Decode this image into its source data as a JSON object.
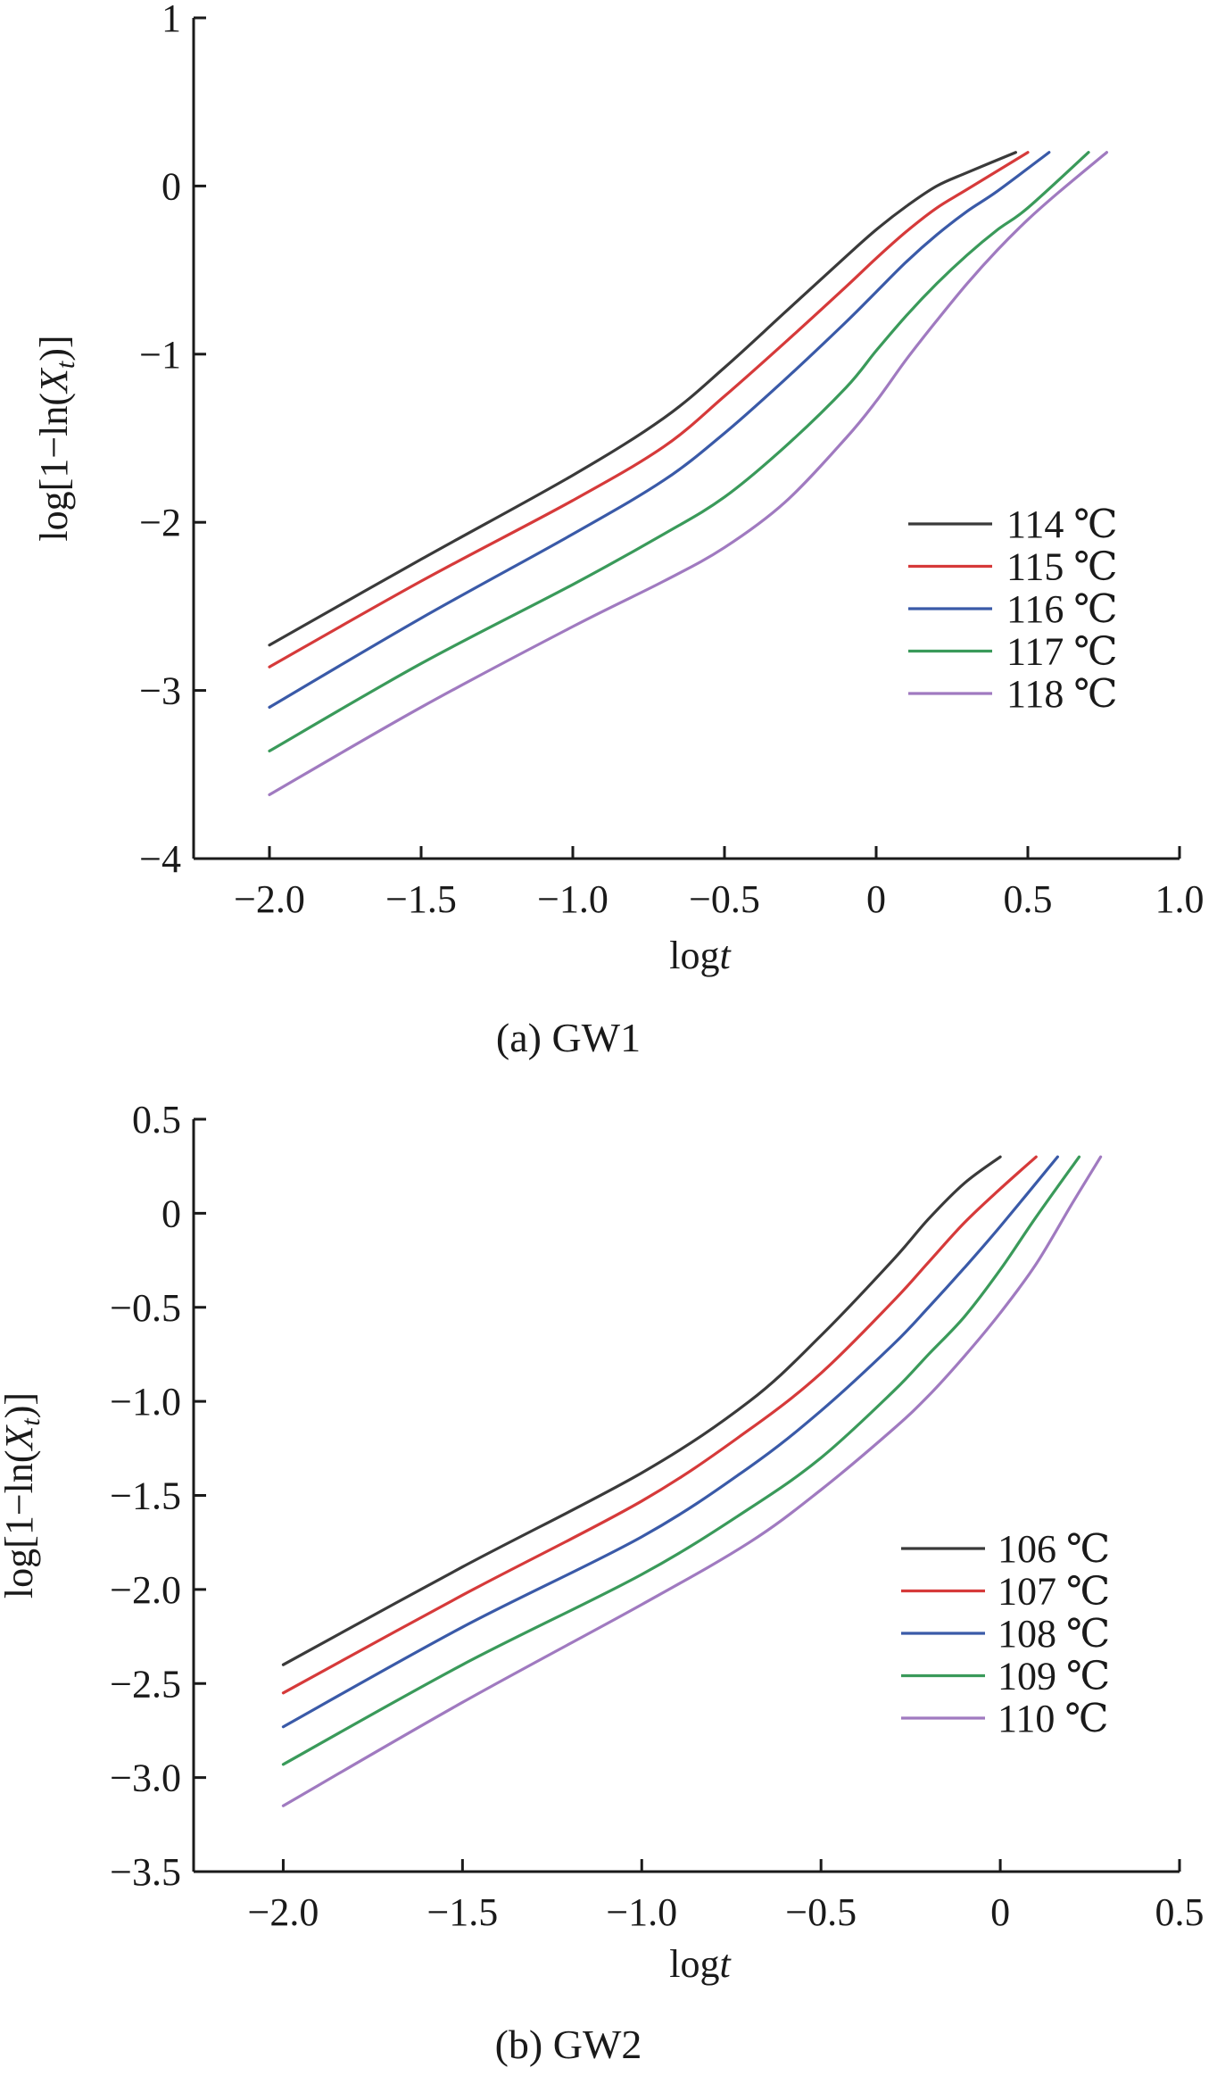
{
  "chart_data": [
    {
      "type": "line",
      "caption": "(a) GW1",
      "xlabel": "log t",
      "ylabel": "log[1−ln(X_t)]",
      "xlim": [
        -2.25,
        1.0
      ],
      "ylim": [
        -4,
        1
      ],
      "xticks": [
        -2.0,
        -1.5,
        -1.0,
        -0.5,
        0,
        0.5,
        1.0
      ],
      "xtick_labels": [
        "−2.0",
        "−1.5",
        "−1.0",
        "−0.5",
        "0",
        "0.5",
        "1.0"
      ],
      "yticks": [
        -4,
        -3,
        -2,
        -1,
        0,
        1
      ],
      "ytick_labels": [
        "−4",
        "−3",
        "−2",
        "−1",
        "0",
        "1"
      ],
      "grid": false,
      "legend_position": "bottom-right",
      "series": [
        {
          "name": "114 ℃",
          "color": "#3a3a3a",
          "x": [
            -2.0,
            -1.5,
            -1.0,
            -0.7,
            -0.5,
            -0.3,
            -0.1,
            0.0,
            0.1,
            0.2,
            0.3,
            0.46
          ],
          "y": [
            -2.73,
            -2.22,
            -1.72,
            -1.38,
            -1.08,
            -0.75,
            -0.42,
            -0.26,
            -0.12,
            0.0,
            0.08,
            0.2
          ]
        },
        {
          "name": "115 ℃",
          "color": "#d63a3a",
          "x": [
            -2.0,
            -1.5,
            -1.0,
            -0.7,
            -0.5,
            -0.3,
            -0.1,
            0.0,
            0.1,
            0.2,
            0.3,
            0.5
          ],
          "y": [
            -2.86,
            -2.35,
            -1.87,
            -1.55,
            -1.25,
            -0.93,
            -0.6,
            -0.43,
            -0.27,
            -0.13,
            -0.02,
            0.2
          ]
        },
        {
          "name": "116 ℃",
          "color": "#3a5aa8",
          "x": [
            -2.0,
            -1.5,
            -1.0,
            -0.7,
            -0.5,
            -0.3,
            -0.1,
            0.0,
            0.1,
            0.2,
            0.3,
            0.4,
            0.57
          ],
          "y": [
            -3.1,
            -2.57,
            -2.07,
            -1.75,
            -1.47,
            -1.15,
            -0.81,
            -0.63,
            -0.45,
            -0.29,
            -0.15,
            -0.03,
            0.2
          ]
        },
        {
          "name": "117 ℃",
          "color": "#3a9a5a",
          "x": [
            -2.0,
            -1.5,
            -1.0,
            -0.7,
            -0.5,
            -0.3,
            -0.1,
            0.0,
            0.1,
            0.2,
            0.3,
            0.4,
            0.5,
            0.7
          ],
          "y": [
            -3.36,
            -2.84,
            -2.37,
            -2.07,
            -1.85,
            -1.55,
            -1.2,
            -0.98,
            -0.77,
            -0.58,
            -0.41,
            -0.26,
            -0.13,
            0.2
          ]
        },
        {
          "name": "118 ℃",
          "color": "#a07ac0",
          "x": [
            -2.0,
            -1.5,
            -1.0,
            -0.7,
            -0.5,
            -0.3,
            -0.1,
            0.0,
            0.1,
            0.2,
            0.3,
            0.4,
            0.5,
            0.6,
            0.76
          ],
          "y": [
            -3.62,
            -3.1,
            -2.62,
            -2.35,
            -2.15,
            -1.88,
            -1.5,
            -1.28,
            -1.03,
            -0.8,
            -0.58,
            -0.38,
            -0.2,
            -0.04,
            0.2
          ]
        }
      ]
    },
    {
      "type": "line",
      "caption": "(b) GW2",
      "xlabel": "log t",
      "ylabel": "log[1−ln(X_t)]",
      "xlim": [
        -2.25,
        0.5
      ],
      "ylim": [
        -3.5,
        0.5
      ],
      "xticks": [
        -2.0,
        -1.5,
        -1.0,
        -0.5,
        0,
        0.5
      ],
      "xtick_labels": [
        "−2.0",
        "−1.5",
        "−1.0",
        "−0.5",
        "0",
        "0.5"
      ],
      "yticks": [
        -3.5,
        -3.0,
        -2.5,
        -2.0,
        -1.5,
        -1.0,
        -0.5,
        0,
        0.5
      ],
      "ytick_labels": [
        "−3.5",
        "−3.0",
        "−2.5",
        "−2.0",
        "−1.5",
        "−1.0",
        "−0.5",
        "0",
        "0.5"
      ],
      "grid": false,
      "legend_position": "bottom-right",
      "series": [
        {
          "name": "106 ℃",
          "color": "#3a3a3a",
          "x": [
            -2.0,
            -1.5,
            -1.0,
            -0.7,
            -0.5,
            -0.3,
            -0.2,
            -0.1,
            0.0
          ],
          "y": [
            -2.4,
            -1.88,
            -1.38,
            -1.0,
            -0.65,
            -0.25,
            -0.03,
            0.16,
            0.3
          ]
        },
        {
          "name": "107 ℃",
          "color": "#d63a3a",
          "x": [
            -2.0,
            -1.5,
            -1.0,
            -0.7,
            -0.5,
            -0.3,
            -0.2,
            -0.1,
            0.0,
            0.1
          ],
          "y": [
            -2.55,
            -2.03,
            -1.53,
            -1.15,
            -0.85,
            -0.47,
            -0.26,
            -0.05,
            0.13,
            0.3
          ]
        },
        {
          "name": "108 ℃",
          "color": "#3a5aa8",
          "x": [
            -2.0,
            -1.5,
            -1.0,
            -0.7,
            -0.5,
            -0.3,
            -0.2,
            -0.1,
            0.0,
            0.16
          ],
          "y": [
            -2.73,
            -2.2,
            -1.72,
            -1.35,
            -1.05,
            -0.7,
            -0.5,
            -0.29,
            -0.07,
            0.3
          ]
        },
        {
          "name": "109 ℃",
          "color": "#3a9a5a",
          "x": [
            -2.0,
            -1.5,
            -1.0,
            -0.7,
            -0.5,
            -0.3,
            -0.2,
            -0.1,
            0.0,
            0.1,
            0.22
          ],
          "y": [
            -2.93,
            -2.4,
            -1.92,
            -1.57,
            -1.3,
            -0.95,
            -0.75,
            -0.55,
            -0.3,
            -0.02,
            0.3
          ]
        },
        {
          "name": "110 ℃",
          "color": "#a07ac0",
          "x": [
            -2.0,
            -1.5,
            -1.0,
            -0.7,
            -0.5,
            -0.3,
            -0.2,
            -0.1,
            0.0,
            0.1,
            0.2,
            0.28
          ],
          "y": [
            -3.15,
            -2.6,
            -2.08,
            -1.75,
            -1.47,
            -1.15,
            -0.97,
            -0.76,
            -0.53,
            -0.27,
            0.05,
            0.3
          ]
        }
      ]
    }
  ]
}
